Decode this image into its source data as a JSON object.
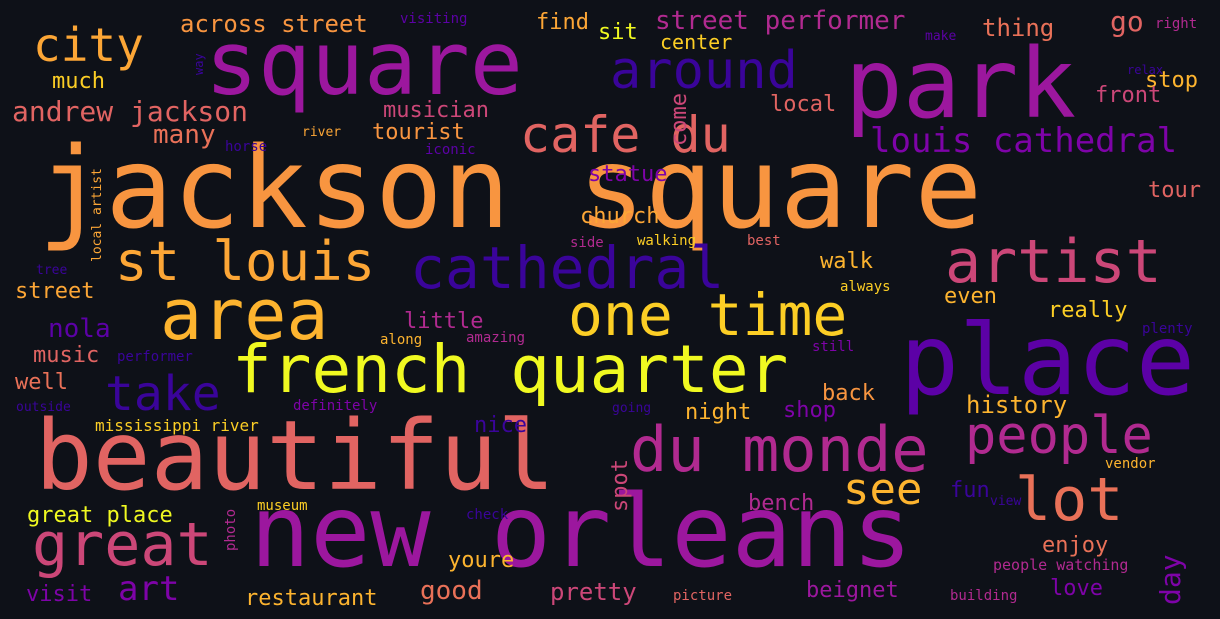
{
  "words": [
    {
      "text": "jackson square",
      "color": "#f89540"
    },
    {
      "text": "square",
      "color": "#9c179e"
    },
    {
      "text": "park",
      "color": "#9c179e"
    },
    {
      "text": "new orleans",
      "color": "#9c179e"
    },
    {
      "text": "beautiful",
      "color": "#e16462"
    },
    {
      "text": "french quarter",
      "color": "#f0f921"
    },
    {
      "text": "area",
      "color": "#fdb42f"
    },
    {
      "text": "place",
      "color": "#5c01a6"
    },
    {
      "text": "cathedral",
      "color": "#3a049a"
    },
    {
      "text": "du monde",
      "color": "#b12a90"
    },
    {
      "text": "st louis",
      "color": "#fca636"
    },
    {
      "text": "one time",
      "color": "#fcce25"
    },
    {
      "text": "artist",
      "color": "#cc4778"
    },
    {
      "text": "people",
      "color": "#b12a90"
    },
    {
      "text": "great",
      "color": "#cc4778"
    },
    {
      "text": "around",
      "color": "#3a049a"
    },
    {
      "text": "cafe du",
      "color": "#e16462"
    },
    {
      "text": "lot",
      "color": "#e97158"
    },
    {
      "text": "city",
      "color": "#fca636"
    },
    {
      "text": "take",
      "color": "#3a049a"
    },
    {
      "text": "see",
      "color": "#fdb42f"
    },
    {
      "text": "louis cathedral",
      "color": "#7e03a8"
    },
    {
      "text": "andrew jackson",
      "color": "#e16462"
    },
    {
      "text": "art",
      "color": "#7e03a8"
    },
    {
      "text": "street performer",
      "color": "#b12a90"
    },
    {
      "text": "across street",
      "color": "#f89540"
    },
    {
      "text": "many",
      "color": "#e97158"
    },
    {
      "text": "tourist",
      "color": "#f89540"
    },
    {
      "text": "musician",
      "color": "#cc4778"
    },
    {
      "text": "much",
      "color": "#fcce25"
    },
    {
      "text": "find",
      "color": "#fca636"
    },
    {
      "text": "sit",
      "color": "#f0f921"
    },
    {
      "text": "center",
      "color": "#fcce25"
    },
    {
      "text": "thing",
      "color": "#e97158"
    },
    {
      "text": "go",
      "color": "#e16462"
    },
    {
      "text": "stop",
      "color": "#fdb42f"
    },
    {
      "text": "front",
      "color": "#cc4778"
    },
    {
      "text": "local",
      "color": "#e16462"
    },
    {
      "text": "come",
      "color": "#cc4778"
    },
    {
      "text": "statue",
      "color": "#7e03a8"
    },
    {
      "text": "church",
      "color": "#fca636"
    },
    {
      "text": "walk",
      "color": "#fdb42f"
    },
    {
      "text": "tour",
      "color": "#e16462"
    },
    {
      "text": "even",
      "color": "#fdb42f"
    },
    {
      "text": "really",
      "color": "#fcce25"
    },
    {
      "text": "little",
      "color": "#b12a90"
    },
    {
      "text": "nola",
      "color": "#5c01a6"
    },
    {
      "text": "music",
      "color": "#e16462"
    },
    {
      "text": "well",
      "color": "#e97158"
    },
    {
      "text": "street",
      "color": "#fca636"
    },
    {
      "text": "history",
      "color": "#fdb42f"
    },
    {
      "text": "back",
      "color": "#f89540"
    },
    {
      "text": "shop",
      "color": "#7e03a8"
    },
    {
      "text": "night",
      "color": "#fdb42f"
    },
    {
      "text": "nice",
      "color": "#3a049a"
    },
    {
      "text": "mississippi river",
      "color": "#fcce25"
    },
    {
      "text": "great place",
      "color": "#f0f921"
    },
    {
      "text": "spot",
      "color": "#cc4778"
    },
    {
      "text": "bench",
      "color": "#b12a90"
    },
    {
      "text": "fun",
      "color": "#3a049a"
    },
    {
      "text": "enjoy",
      "color": "#e97158"
    },
    {
      "text": "day",
      "color": "#7e03a8"
    },
    {
      "text": "youre",
      "color": "#fdb42f"
    },
    {
      "text": "good",
      "color": "#e97158"
    },
    {
      "text": "pretty",
      "color": "#cc4778"
    },
    {
      "text": "beignet",
      "color": "#9c179e"
    },
    {
      "text": "love",
      "color": "#7e03a8"
    },
    {
      "text": "restaurant",
      "color": "#fdb42f"
    },
    {
      "text": "visit",
      "color": "#7e03a8"
    },
    {
      "text": "visiting",
      "color": "#5c01a6"
    },
    {
      "text": "right",
      "color": "#b12a90"
    },
    {
      "text": "make",
      "color": "#5c01a6"
    },
    {
      "text": "relax",
      "color": "#3a049a"
    },
    {
      "text": "way",
      "color": "#3a049a"
    },
    {
      "text": "river",
      "color": "#fca636"
    },
    {
      "text": "horse",
      "color": "#3a049a"
    },
    {
      "text": "iconic",
      "color": "#5c01a6"
    },
    {
      "text": "local artist",
      "color": "#fca636"
    },
    {
      "text": "side",
      "color": "#b12a90"
    },
    {
      "text": "walking",
      "color": "#fcce25"
    },
    {
      "text": "best",
      "color": "#e16462"
    },
    {
      "text": "always",
      "color": "#fcce25"
    },
    {
      "text": "tree",
      "color": "#3a049a"
    },
    {
      "text": "plenty",
      "color": "#3a049a"
    },
    {
      "text": "along",
      "color": "#fdb42f"
    },
    {
      "text": "amazing",
      "color": "#b12a90"
    },
    {
      "text": "still",
      "color": "#7e03a8"
    },
    {
      "text": "performer",
      "color": "#3a049a"
    },
    {
      "text": "outside",
      "color": "#3a049a"
    },
    {
      "text": "definitely",
      "color": "#7e03a8"
    },
    {
      "text": "going",
      "color": "#3a049a"
    },
    {
      "text": "vendor",
      "color": "#fdb42f"
    },
    {
      "text": "photo",
      "color": "#b12a90"
    },
    {
      "text": "museum",
      "color": "#fcce25"
    },
    {
      "text": "check",
      "color": "#3a049a"
    },
    {
      "text": "view",
      "color": "#3a049a"
    },
    {
      "text": "people watching",
      "color": "#b12a90"
    },
    {
      "text": "picture",
      "color": "#e16462"
    },
    {
      "text": "building",
      "color": "#b12a90"
    }
  ]
}
